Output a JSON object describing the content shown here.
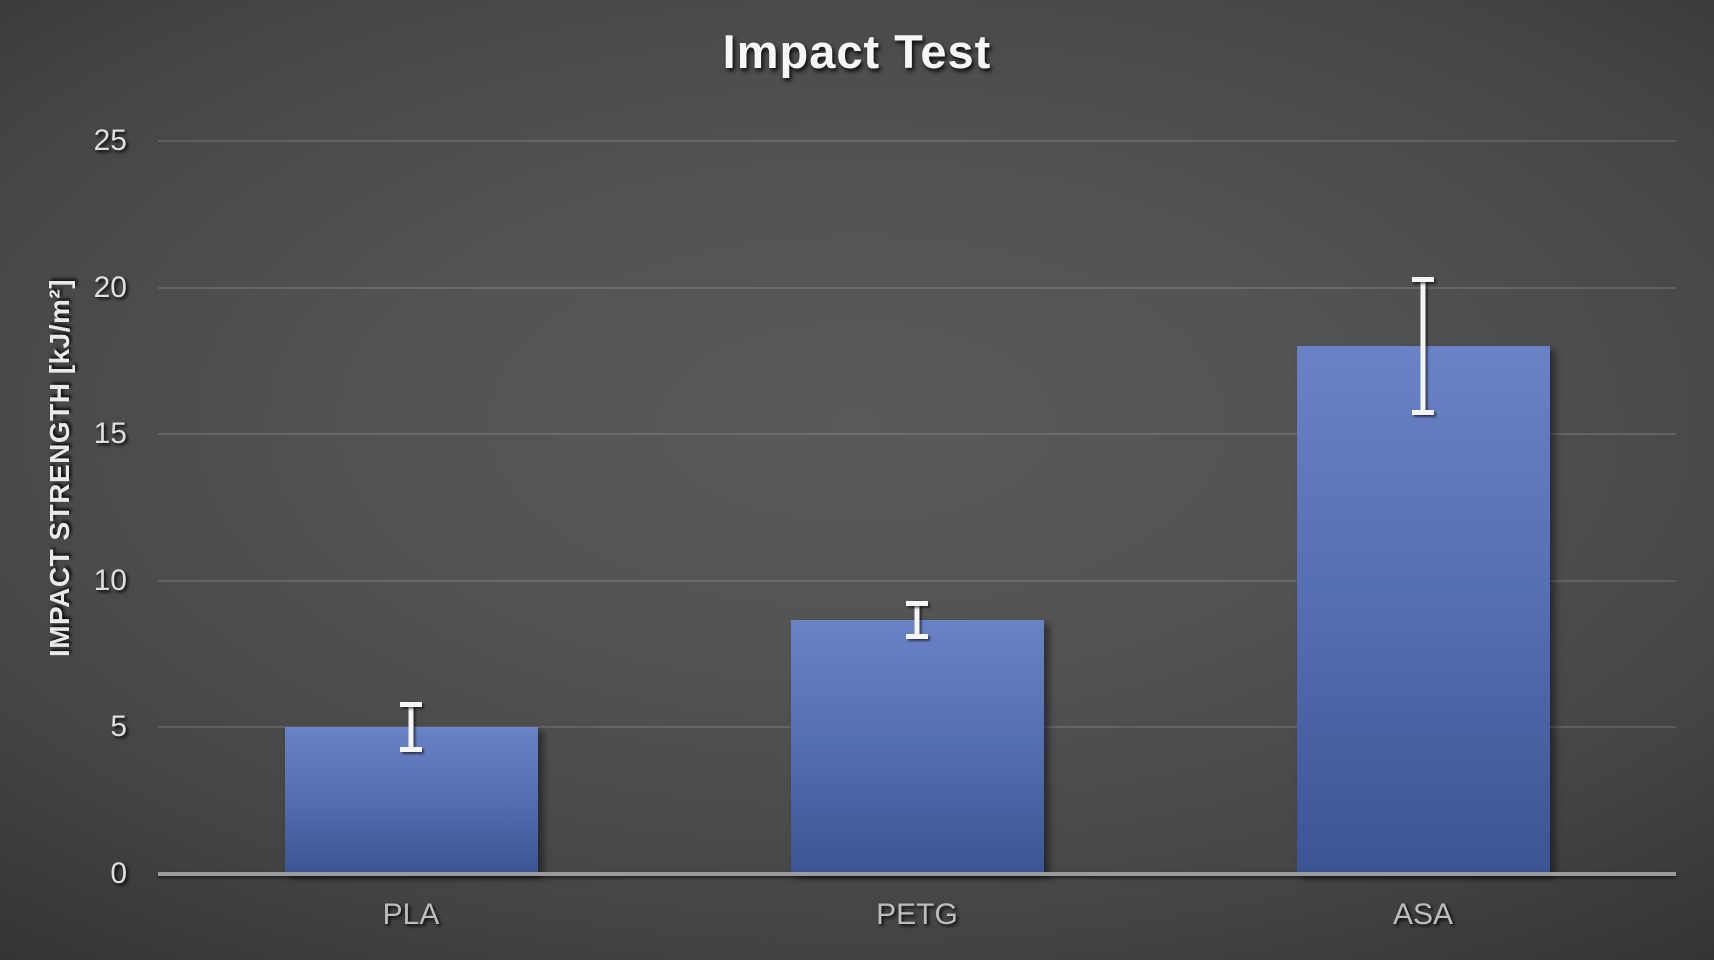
{
  "chart": {
    "title": "Impact Test",
    "y_axis_title": "IMPACT STRENGTH [kJ/m²]"
  },
  "chart_data": {
    "type": "bar",
    "title": "Impact Test",
    "xlabel": "",
    "ylabel": "IMPACT STRENGTH [kJ/m²]",
    "categories": [
      "PLA",
      "PETG",
      "ASA"
    ],
    "values": [
      5.0,
      8.65,
      18.0
    ],
    "error_bars": [
      0.85,
      0.65,
      2.35
    ],
    "ylim": [
      0,
      25
    ],
    "yticks": [
      0,
      5,
      10,
      15,
      20,
      25
    ],
    "grid": true,
    "legend": "none",
    "colors": {
      "background_center": "#595959",
      "background_edge": "#242424",
      "bar_top": "#6a82c6",
      "bar_bottom": "#3c5494",
      "gridline": "rgba(255,255,255,0.13)",
      "axis_line": "#9b9b9b",
      "error_bar": "#f5f5f5",
      "title_text": "#f6f6f6",
      "tick_text": "#dedede",
      "category_text": "#bdbdbd"
    }
  }
}
